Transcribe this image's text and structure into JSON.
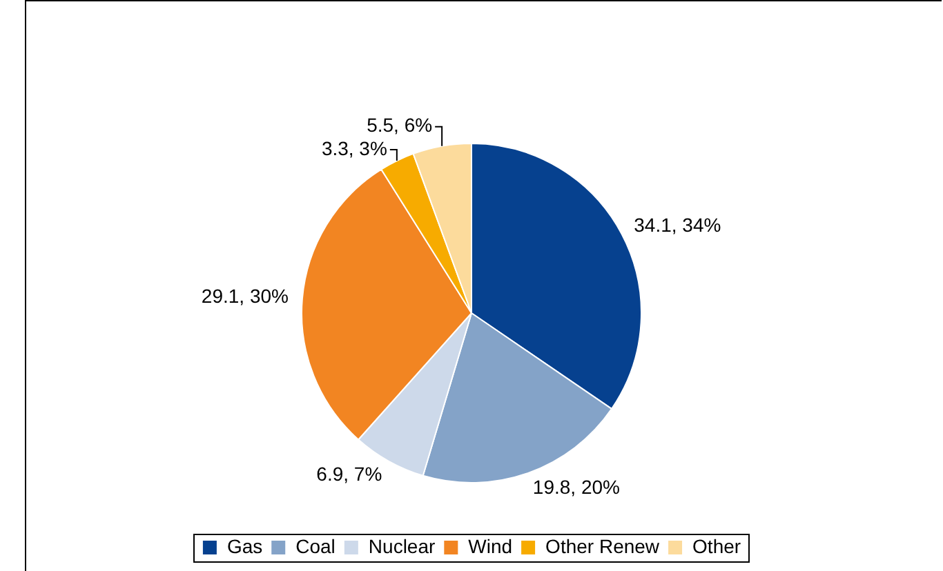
{
  "chart_data": {
    "type": "pie",
    "categories": [
      "Gas",
      "Coal",
      "Nuclear",
      "Wind",
      "Other Renew",
      "Other"
    ],
    "values": [
      34.1,
      19.8,
      6.9,
      29.1,
      3.3,
      5.5
    ],
    "colors": [
      "#06418f",
      "#84a3c8",
      "#cdd9ea",
      "#f28522",
      "#f7ab00",
      "#fcdb9c"
    ],
    "value_labels": [
      "34.1, 34%",
      "19.8, 20%",
      "6.9, 7%",
      "29.1, 30%",
      "3.3, 3%",
      "5.5, 6%"
    ],
    "legend": "bottom"
  }
}
